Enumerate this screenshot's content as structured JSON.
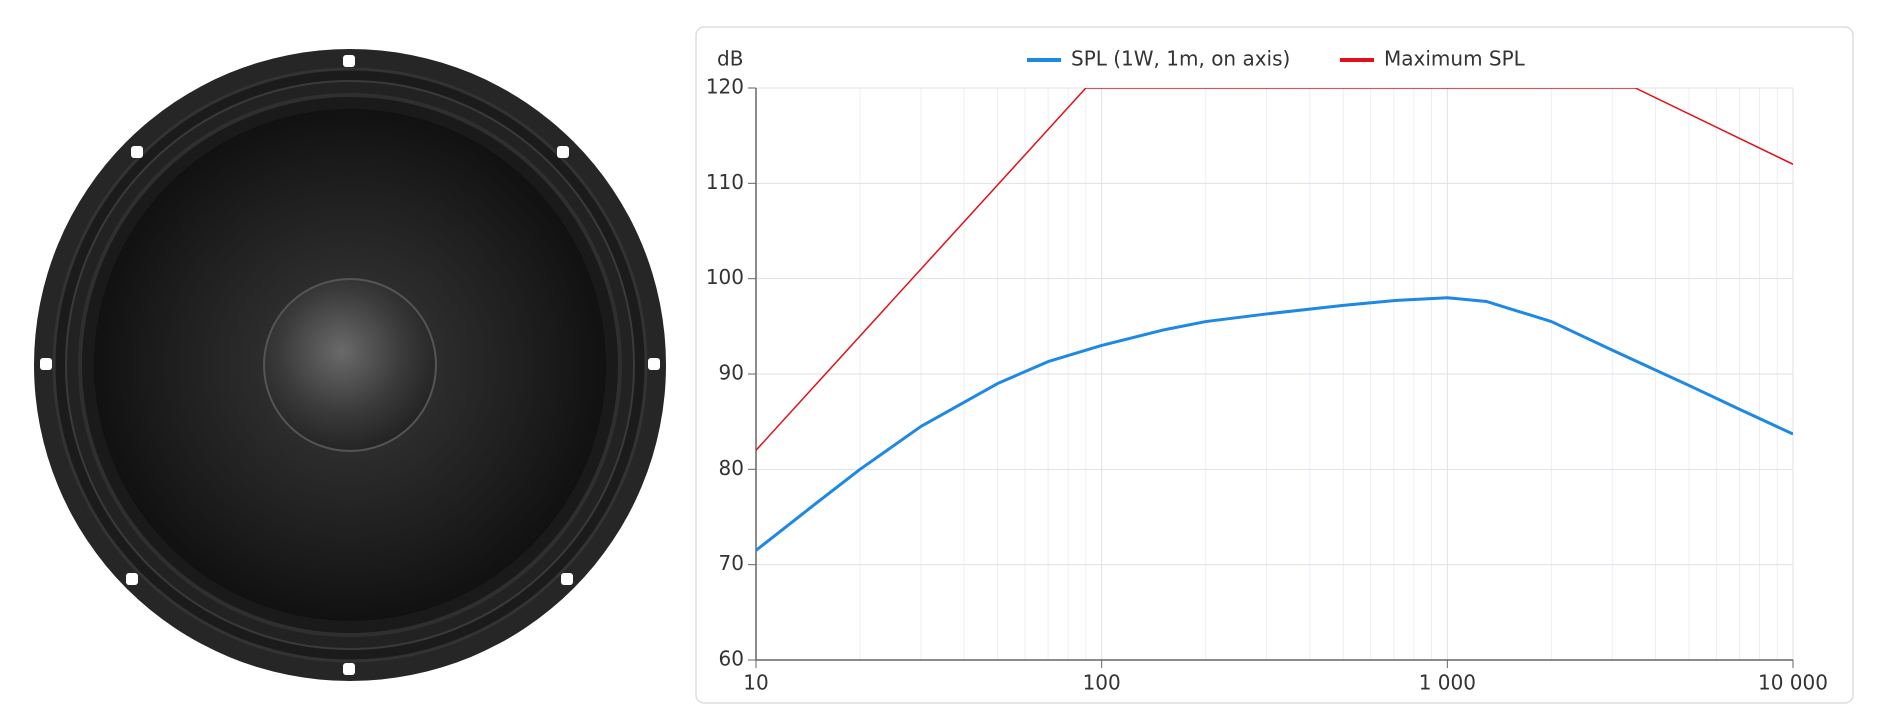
{
  "chart_data": {
    "type": "line",
    "y_label": "dB",
    "xscale": "log",
    "xlim": [
      10,
      10000
    ],
    "xticks": [
      10,
      100,
      {
        "value": 1000,
        "label": "1 000"
      },
      {
        "value": 10000,
        "label": "10 000"
      }
    ],
    "ylim": [
      60,
      120
    ],
    "yticks": [
      60,
      70,
      80,
      90,
      100,
      110,
      120
    ],
    "grid": true,
    "legend": "top",
    "series": [
      {
        "name": "SPL (1W, 1m, on axis)",
        "color": "#1e88e5",
        "x": [
          10,
          15,
          20,
          30,
          50,
          70,
          100,
          150,
          200,
          300,
          500,
          700,
          1000,
          1300,
          2000,
          3000,
          5000,
          7000,
          10000
        ],
        "values": [
          71.5,
          76.5,
          80,
          84.5,
          89,
          91.3,
          93,
          94.6,
          95.5,
          96.3,
          97.2,
          97.7,
          98,
          97.6,
          95.5,
          92.5,
          88.8,
          86.3,
          83.7
        ]
      },
      {
        "name": "Maximum SPL",
        "color": "#e3101a",
        "x": [
          10,
          90,
          3500,
          10000
        ],
        "values": [
          82,
          120,
          120,
          112
        ]
      }
    ]
  }
}
